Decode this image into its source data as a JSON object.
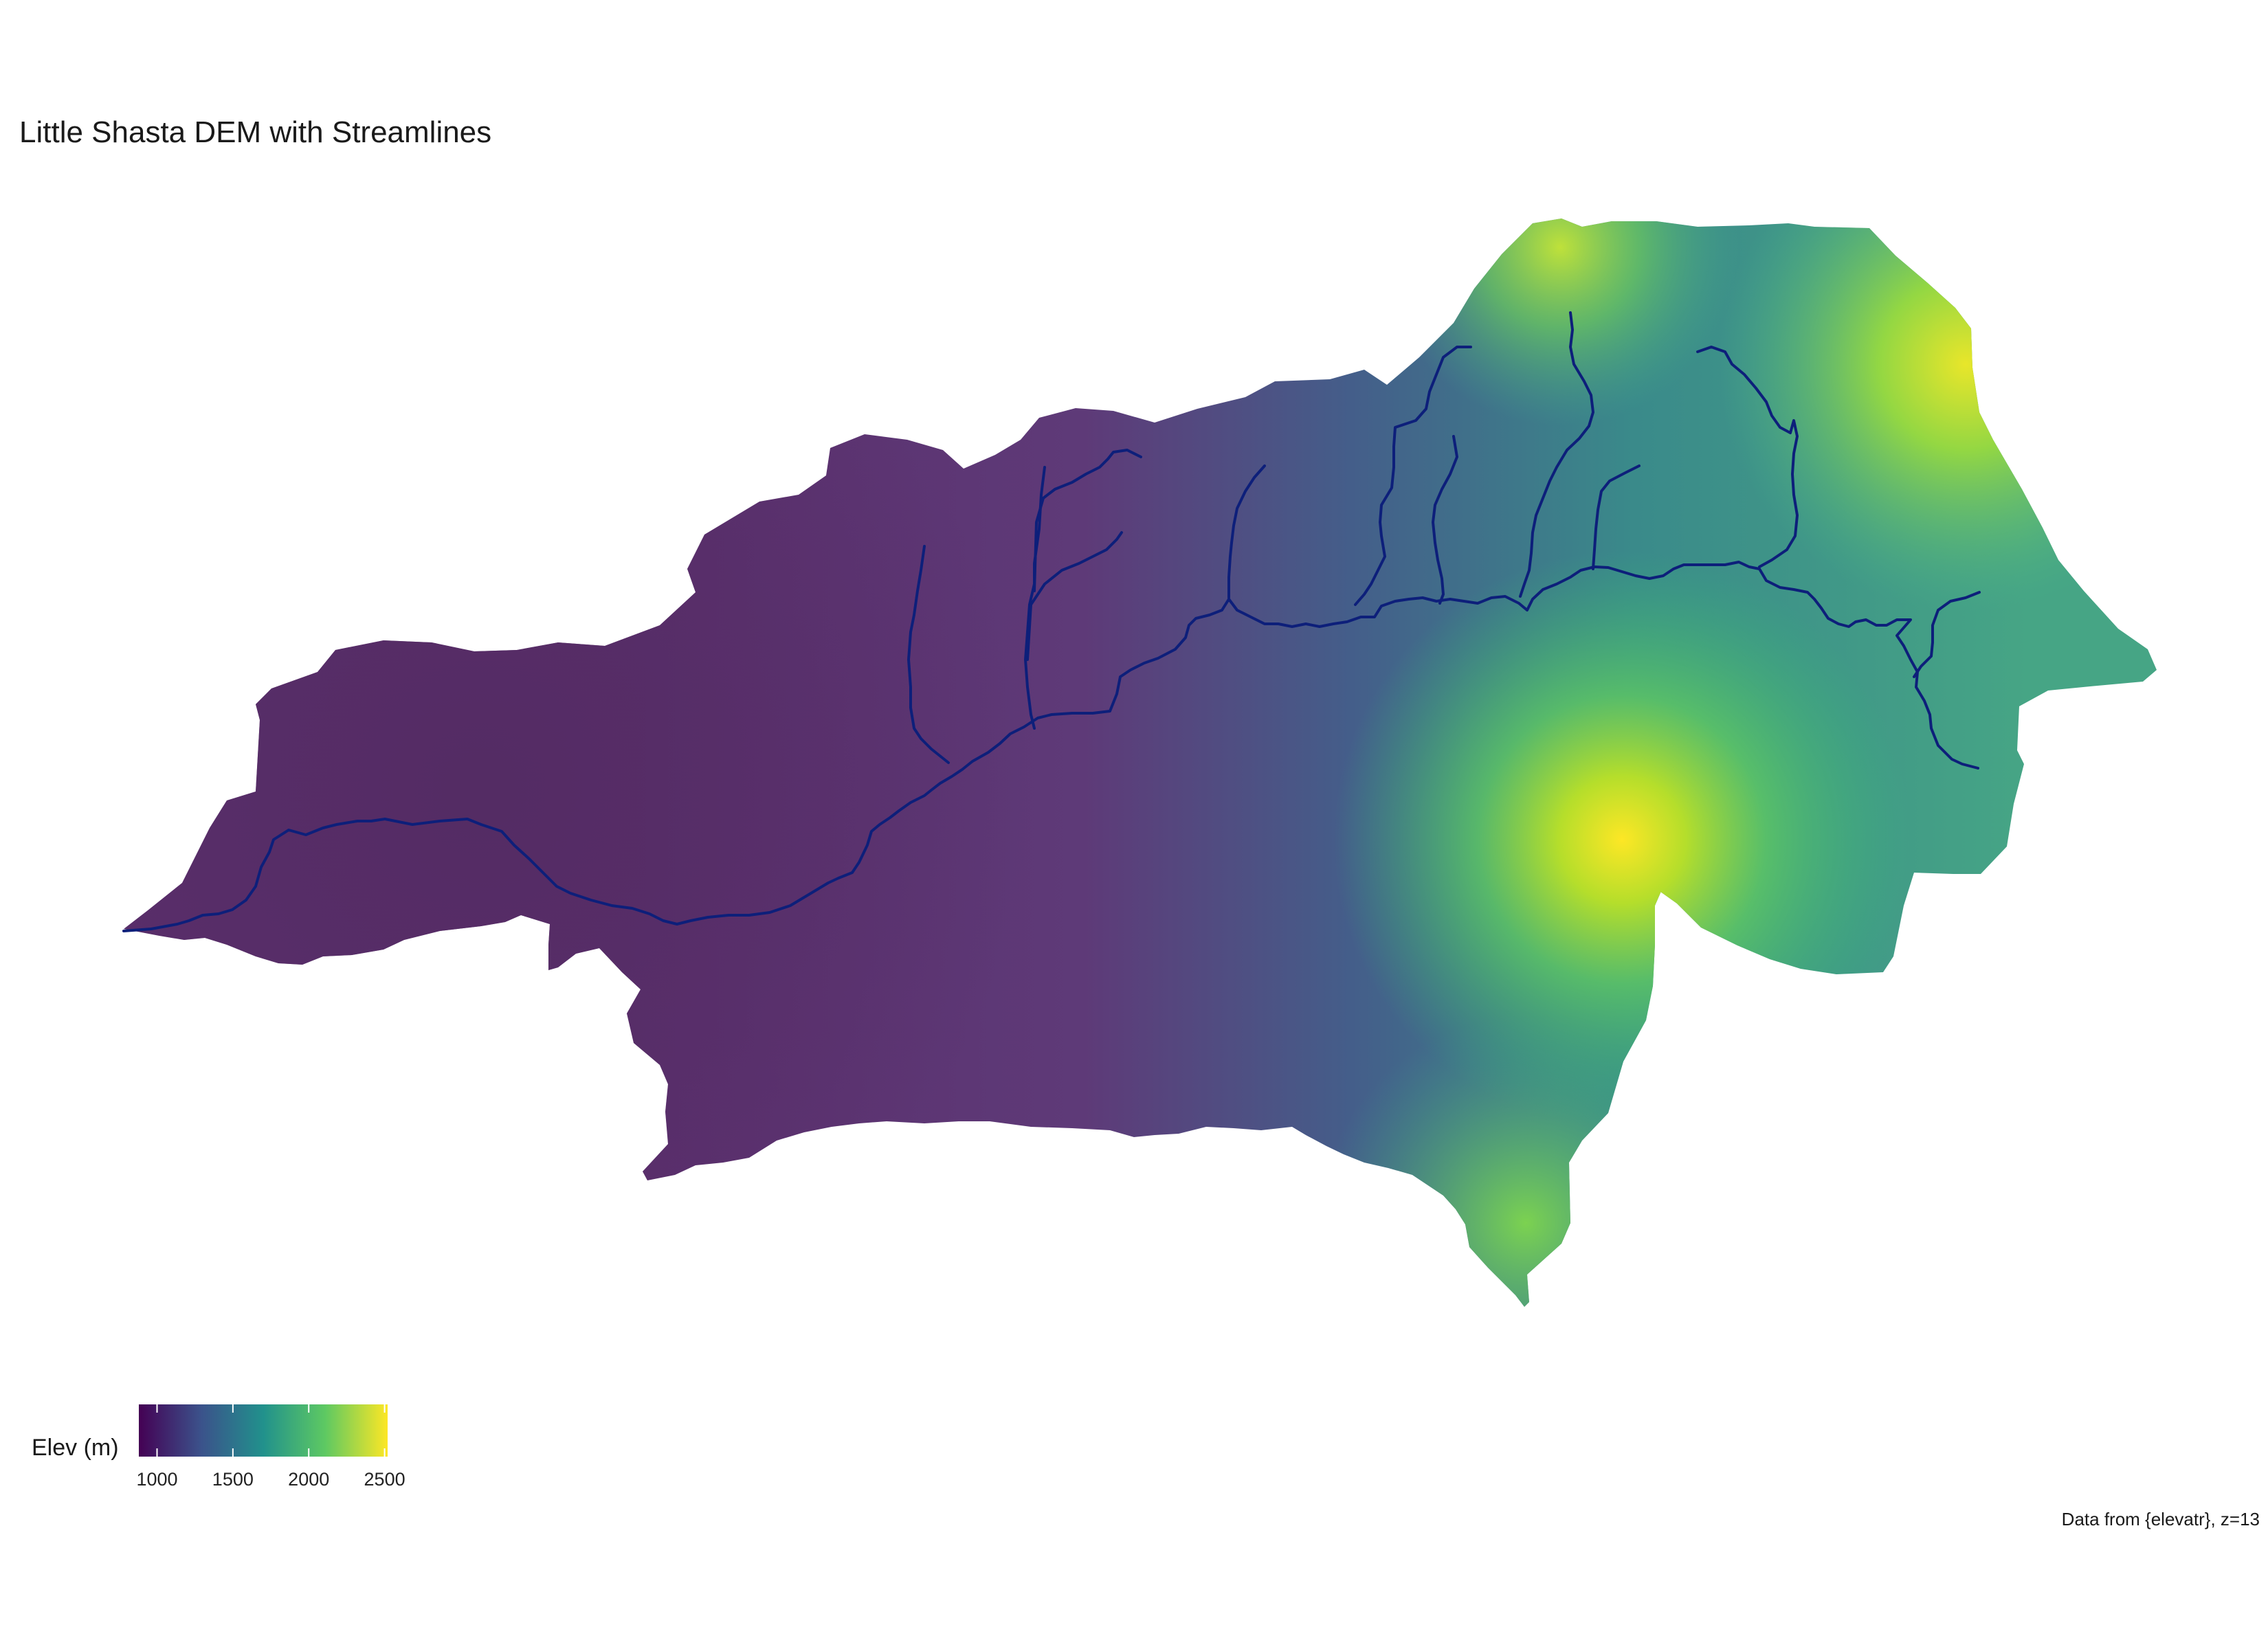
{
  "title": "Little Shasta DEM with Streamlines",
  "caption": "Data from {elevatr}, z=13",
  "legend": {
    "title": "Elev (m)",
    "ticks": [
      "1000",
      "1500",
      "2000",
      "2500"
    ],
    "colormap": "viridis",
    "colors": [
      "#440154",
      "#3b528b",
      "#21918c",
      "#5ec962",
      "#fde725"
    ]
  },
  "stream_color": "#0d1f7a",
  "chart_data": {
    "type": "heatmap",
    "title": "Little Shasta DEM with Streamlines",
    "colorbar_label": "Elev (m)",
    "value_range": [
      880,
      2520
    ],
    "colorbar_ticks": [
      1000,
      1500,
      2000,
      2500
    ],
    "peak_elevation_approx": 2500,
    "streams_shown": true,
    "legend_placement": "bottom-left"
  }
}
